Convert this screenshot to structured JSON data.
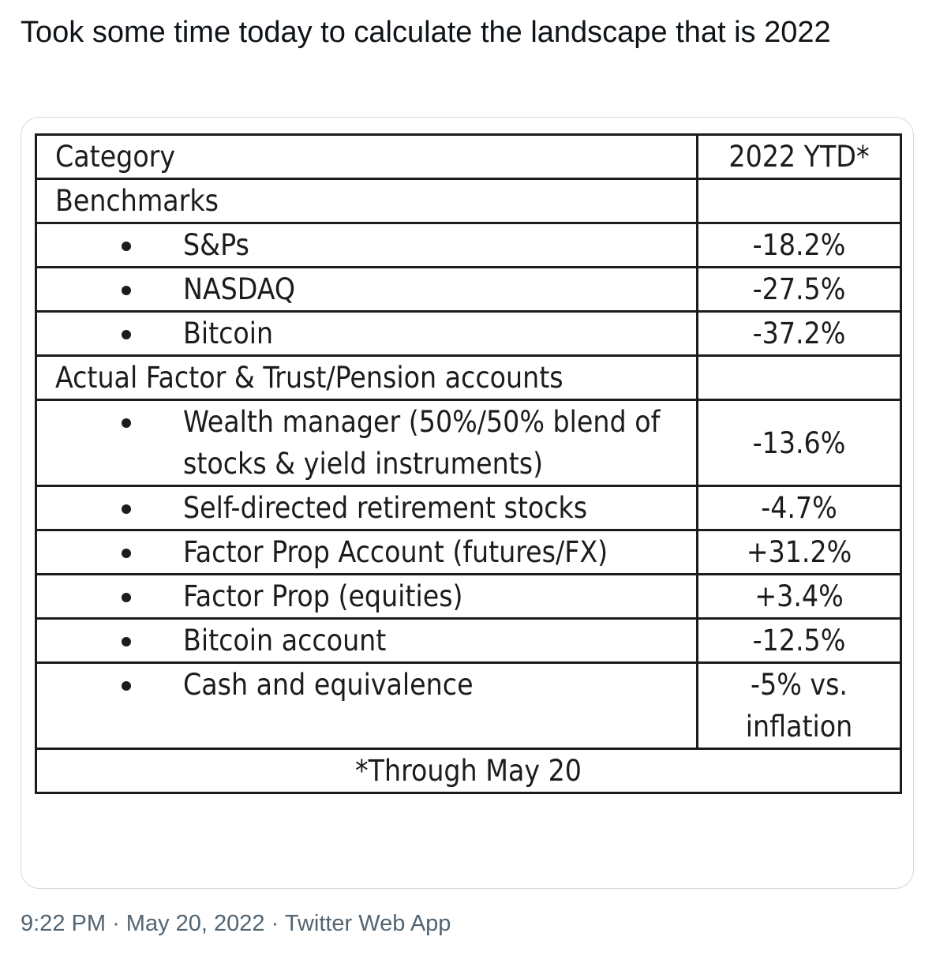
{
  "tweet": {
    "text": "Took some time today to calculate the landscape that is 2022",
    "time": "9:22 PM",
    "separator": "·",
    "date": "May 20, 2022",
    "source": "Twitter Web App"
  },
  "table": {
    "header": {
      "category": "Category",
      "value": "2022 YTD*"
    },
    "benchmarks_label": "Benchmarks",
    "benchmarks": [
      {
        "label": "S&Ps",
        "value": "-18.2%"
      },
      {
        "label": "NASDAQ",
        "value": "-27.5%"
      },
      {
        "label": "Bitcoin",
        "value": "-37.2%"
      }
    ],
    "accounts_label": "Actual Factor & Trust/Pension accounts",
    "accounts": [
      {
        "label": "Wealth manager (50%/50% blend of stocks & yield instruments)",
        "value": "-13.6%"
      },
      {
        "label": "Self-directed retirement stocks",
        "value": "-4.7%"
      },
      {
        "label": "Factor Prop Account (futures/FX)",
        "value": "+31.2%"
      },
      {
        "label": "Factor Prop (equities)",
        "value": "+3.4%"
      },
      {
        "label": "Bitcoin account",
        "value": "-12.5%"
      },
      {
        "label": "Cash and equivalence",
        "value": "-5% vs. inflation"
      }
    ],
    "footnote": "*Through May 20"
  }
}
